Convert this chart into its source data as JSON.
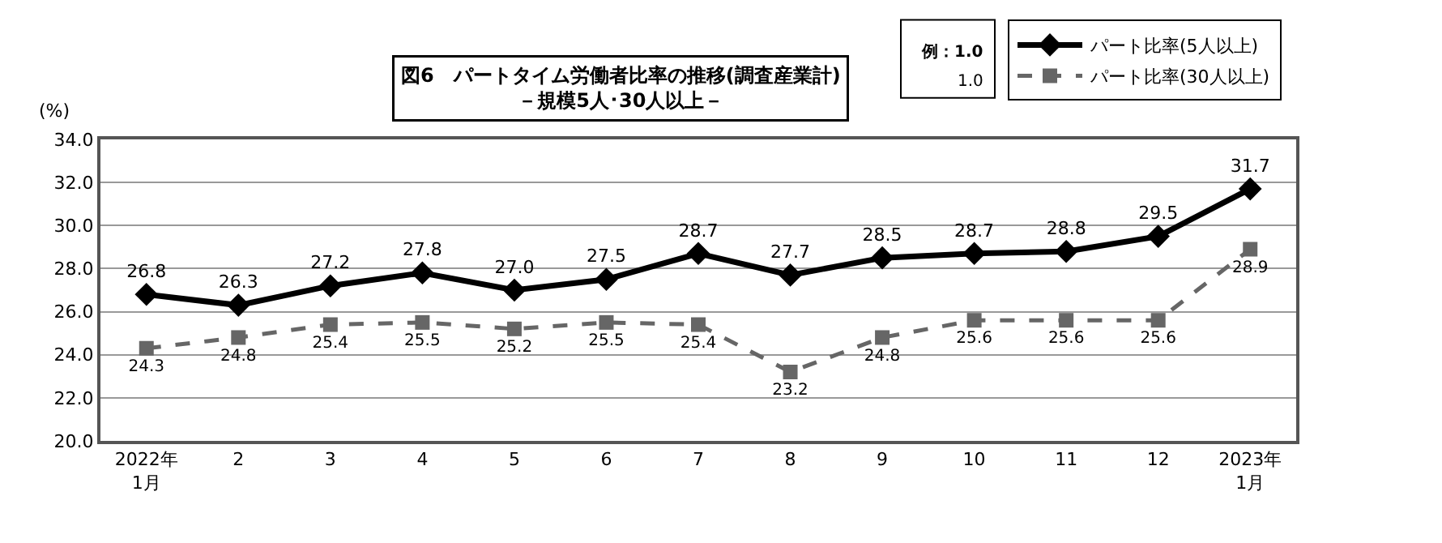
{
  "chart_data": {
    "type": "line",
    "title": "図6　パートタイム労働者比率の推移(調査産業計)",
    "subtitle": "－規模5人･30人以上－",
    "ylabel": "(%)",
    "categories": [
      "2022年\n1月",
      "2",
      "3",
      "4",
      "5",
      "6",
      "7",
      "8",
      "9",
      "10",
      "11",
      "12",
      "2023年\n1月"
    ],
    "series": [
      {
        "name": "パート比率(5人以上)",
        "color": "#000000",
        "marker": "diamond",
        "line_style": "solid",
        "values": [
          26.8,
          26.3,
          27.2,
          27.8,
          27.0,
          27.5,
          28.7,
          27.7,
          28.5,
          28.7,
          28.8,
          29.5,
          31.7
        ],
        "value_labels": [
          "26.8",
          "26.3",
          "27.2",
          "27.8",
          "27.0",
          "27.5",
          "28.7",
          "27.7",
          "28.5",
          "28.7",
          "28.8",
          "29.5",
          "31.7"
        ]
      },
      {
        "name": "パート比率(30人以上)",
        "color": "#666666",
        "marker": "square",
        "line_style": "dashed",
        "values": [
          24.3,
          24.8,
          25.4,
          25.5,
          25.2,
          25.5,
          25.4,
          23.2,
          24.8,
          25.6,
          25.6,
          25.6,
          28.9
        ],
        "value_labels": [
          "24.3",
          "24.8",
          "25.4",
          "25.5",
          "25.2",
          "25.5",
          "25.4",
          "23.2",
          "24.8",
          "25.6",
          "25.6",
          "25.6",
          "28.9"
        ]
      }
    ],
    "ylim": [
      20.0,
      34.0
    ],
    "yticks": [
      {
        "value": 20,
        "label": "20.0"
      },
      {
        "value": 22,
        "label": "22.0"
      },
      {
        "value": 24,
        "label": "24.0"
      },
      {
        "value": 26,
        "label": "26.0"
      },
      {
        "value": 28,
        "label": "28.0"
      },
      {
        "value": 30,
        "label": "30.0"
      },
      {
        "value": 32,
        "label": "32.0"
      },
      {
        "value": 34,
        "label": "34.0"
      }
    ],
    "grid": "y",
    "legend": "top right",
    "annotations": [
      "例：1.0",
      "1.0"
    ]
  }
}
